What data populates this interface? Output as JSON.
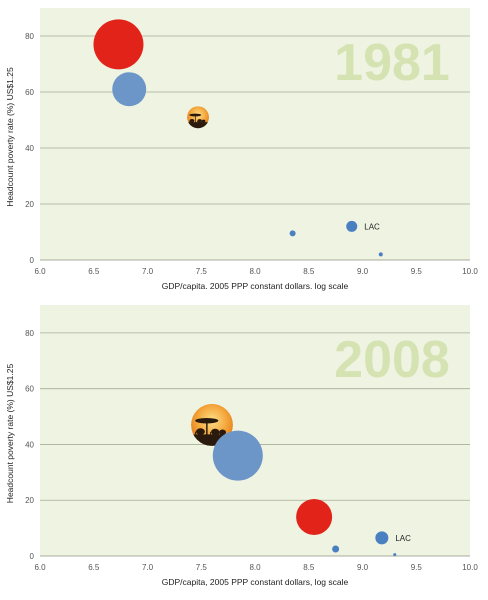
{
  "chart_data": [
    {
      "type": "scatter",
      "subtype": "bubble",
      "year_label": "1981",
      "xlabel": "GDP/capita. 2005 PPP constant dollars. log scale",
      "ylabel": "Headcount poverty rate (%) US$1.25",
      "xlim": [
        6.0,
        10.0
      ],
      "ylim": [
        0,
        90
      ],
      "xticks": [
        "6.0",
        "6.5",
        "7.0",
        "7.5",
        "8.0",
        "8.5",
        "9.0",
        "9.5",
        "10.0"
      ],
      "yticks": [
        "0",
        "20",
        "40",
        "60",
        "80"
      ],
      "grid": true,
      "background": "#eef3e2",
      "points": [
        {
          "x": 6.73,
          "y": 77,
          "r": 25,
          "color": "#e2231a",
          "label": ""
        },
        {
          "x": 6.83,
          "y": 61,
          "r": 17,
          "color": "#6d96c8",
          "label": ""
        },
        {
          "x": 7.47,
          "y": 51,
          "r": 11,
          "color": "#f0a030",
          "icon": "africa-savanna-icon",
          "label": ""
        },
        {
          "x": 8.35,
          "y": 9.5,
          "r": 3,
          "color": "#4a7fc0",
          "label": ""
        },
        {
          "x": 8.9,
          "y": 12,
          "r": 5.5,
          "color": "#4a7fc0",
          "label": "LAC"
        },
        {
          "x": 9.17,
          "y": 2,
          "r": 2,
          "color": "#4a7fc0",
          "label": ""
        }
      ]
    },
    {
      "type": "scatter",
      "subtype": "bubble",
      "year_label": "2008",
      "xlabel": "GDP/capita, 2005 PPP constant dollars, log scale",
      "ylabel": "Headcount poverty rate (%) US$1.25",
      "xlim": [
        6.0,
        10.0
      ],
      "ylim": [
        0,
        90
      ],
      "xticks": [
        "6.0",
        "6.5",
        "7.0",
        "7.5",
        "8.0",
        "8.5",
        "9.0",
        "9.5",
        "10.0"
      ],
      "yticks": [
        "0",
        "20",
        "40",
        "60",
        "80"
      ],
      "grid": true,
      "background": "#eef3e2",
      "points": [
        {
          "x": 7.6,
          "y": 47,
          "r": 21,
          "color": "#f0a030",
          "icon": "africa-savanna-icon",
          "label": ""
        },
        {
          "x": 7.84,
          "y": 36,
          "r": 25,
          "color": "#6d96c8",
          "label": ""
        },
        {
          "x": 8.55,
          "y": 14,
          "r": 18,
          "color": "#e2231a",
          "label": ""
        },
        {
          "x": 8.75,
          "y": 2.5,
          "r": 3.5,
          "color": "#4a7fc0",
          "label": ""
        },
        {
          "x": 9.18,
          "y": 6.5,
          "r": 6.5,
          "color": "#4a7fc0",
          "label": "LAC"
        },
        {
          "x": 9.3,
          "y": 0.5,
          "r": 1.5,
          "color": "#4a7fc0",
          "label": ""
        }
      ]
    }
  ]
}
